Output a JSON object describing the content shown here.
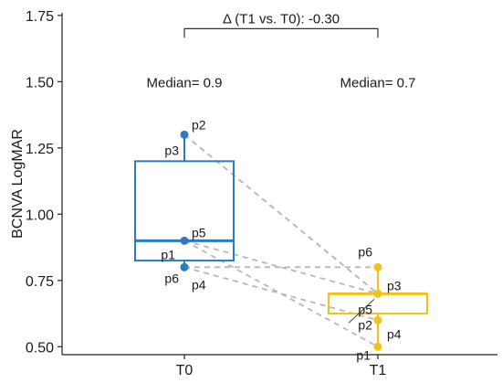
{
  "chart_data": {
    "type": "box-paired",
    "ylabel": "BCNVA LogMAR",
    "xlabel": "",
    "ylim": [
      0.47,
      1.76
    ],
    "yticks": [
      "0.50",
      "0.75",
      "1.00",
      "1.25",
      "1.50",
      "1.75"
    ],
    "ytick_values": [
      0.5,
      0.75,
      1.0,
      1.25,
      1.5,
      1.75
    ],
    "grid": false,
    "categories": [
      "T0",
      "T1"
    ],
    "colors": {
      "T0": "#2b7bbf",
      "T1": "#f0c21a",
      "lines": "#b8b8b8",
      "axis": "#222222"
    },
    "groups": [
      {
        "name": "T0",
        "median_label": "Median= 0.9",
        "box": {
          "q1": 0.825,
          "median": 0.9,
          "q3": 1.2,
          "whisker_low": 0.8,
          "whisker_high": 1.3
        },
        "points": [
          {
            "id": "p1",
            "value": 0.9
          },
          {
            "id": "p2",
            "value": 1.3
          },
          {
            "id": "p3",
            "value": 1.3
          },
          {
            "id": "p4",
            "value": 0.8
          },
          {
            "id": "p5",
            "value": 0.9
          },
          {
            "id": "p6",
            "value": 0.8
          }
        ]
      },
      {
        "name": "T1",
        "median_label": "Median= 0.7",
        "box": {
          "q1": 0.625,
          "median": 0.7,
          "q3": 0.7,
          "whisker_low": 0.5,
          "whisker_high": 0.8
        },
        "points": [
          {
            "id": "p1",
            "value": 0.5
          },
          {
            "id": "p2",
            "value": 0.7
          },
          {
            "id": "p3",
            "value": 0.7
          },
          {
            "id": "p4",
            "value": 0.6
          },
          {
            "id": "p5",
            "value": 0.7
          },
          {
            "id": "p6",
            "value": 0.8
          }
        ]
      }
    ],
    "comparison_label": "Δ (T1 vs. T0): -0.30"
  }
}
